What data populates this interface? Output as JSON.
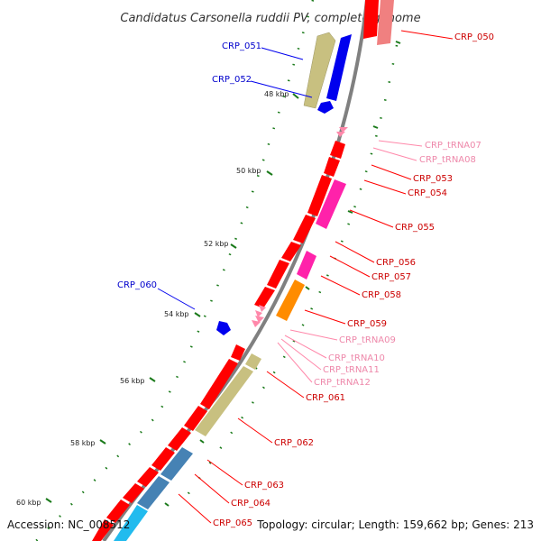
{
  "title": "Candidatus Carsonella ruddii PV, complete genome",
  "footer": {
    "accession": "Accession: NC_008512",
    "summary": "Topology: circular; Length: 159,662 bp; Genes: 213"
  },
  "colors": {
    "cds": "#ff0000",
    "cds_light": "#f08080",
    "trna": "#ff88aa",
    "magenta": "#ff22aa",
    "orange": "#ff8c00",
    "khaki": "#c8c080",
    "blue": "#0000ee",
    "steel": "#4682b4",
    "cyan": "#22bbee",
    "backbone": "#808080",
    "tick_green": "#1a7a1a"
  },
  "ticks": [
    {
      "label": "48 kbp"
    },
    {
      "label": "50 kbp"
    },
    {
      "label": "52 kbp"
    },
    {
      "label": "54 kbp"
    },
    {
      "label": "56 kbp"
    },
    {
      "label": "58 kbp"
    },
    {
      "label": "60 kbp"
    }
  ],
  "labels": {
    "crp_050": "CRP_050",
    "crp_051": "CRP_051",
    "crp_052": "CRP_052",
    "crp_trna07": "CRP_tRNA07",
    "crp_trna08": "CRP_tRNA08",
    "crp_053": "CRP_053",
    "crp_054": "CRP_054",
    "crp_055": "CRP_055",
    "crp_056": "CRP_056",
    "crp_057": "CRP_057",
    "crp_058": "CRP_058",
    "crp_060": "CRP_060",
    "crp_059": "CRP_059",
    "crp_trna09": "CRP_tRNA09",
    "crp_trna10": "CRP_tRNA10",
    "crp_trna11": "CRP_tRNA11",
    "crp_trna12": "CRP_tRNA12",
    "crp_061": "CRP_061",
    "crp_062": "CRP_062",
    "crp_063": "CRP_063",
    "crp_064": "CRP_064",
    "crp_065": "CRP_065"
  }
}
